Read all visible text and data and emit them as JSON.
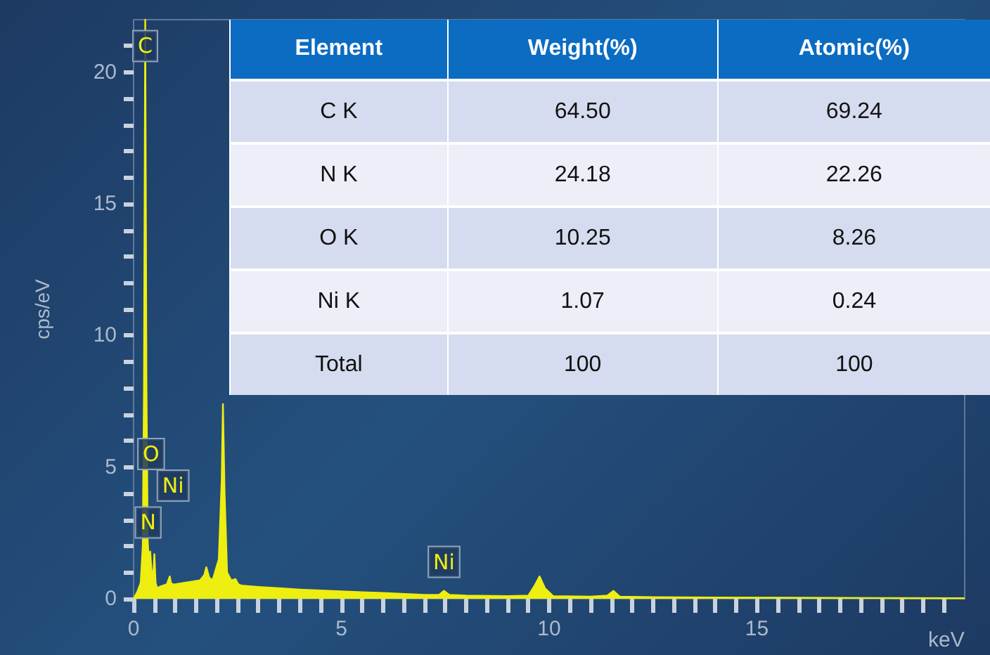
{
  "chart_data": [
    {
      "type": "area",
      "xlabel": "keV",
      "ylabel": "cps/eV",
      "color": "#eeee10",
      "xlim": [
        0,
        20
      ],
      "ylim": [
        0,
        22
      ],
      "xticks": [
        0,
        {
          "value": 0.5,
          "label": null
        },
        {
          "value": 1,
          "label": null
        },
        {
          "value": 1.5,
          "label": null
        },
        {
          "value": 2,
          "label": null
        },
        {
          "value": 2.5,
          "label": null
        },
        {
          "value": 3,
          "label": null
        },
        {
          "value": 3.5,
          "label": null
        },
        {
          "value": 4,
          "label": null
        },
        {
          "value": 4.5,
          "label": null
        },
        5,
        {
          "value": 5.5,
          "label": null
        },
        {
          "value": 6,
          "label": null
        },
        {
          "value": 6.5,
          "label": null
        },
        {
          "value": 7,
          "label": null
        },
        {
          "value": 7.5,
          "label": null
        },
        {
          "value": 8,
          "label": null
        },
        {
          "value": 8.5,
          "label": null
        },
        {
          "value": 9,
          "label": null
        },
        {
          "value": 9.5,
          "label": null
        },
        10,
        {
          "value": 10.5,
          "label": null
        },
        {
          "value": 11,
          "label": null
        },
        {
          "value": 11.5,
          "label": null
        },
        {
          "value": 12,
          "label": null
        },
        {
          "value": 12.5,
          "label": null
        },
        {
          "value": 13,
          "label": null
        },
        {
          "value": 13.5,
          "label": null
        },
        {
          "value": 14,
          "label": null
        },
        {
          "value": 14.5,
          "label": null
        },
        15,
        {
          "value": 15.5,
          "label": null
        },
        {
          "value": 16,
          "label": null
        },
        {
          "value": 16.5,
          "label": null
        },
        {
          "value": 17,
          "label": null
        },
        {
          "value": 17.5,
          "label": null
        },
        {
          "value": 18,
          "label": null
        },
        {
          "value": 18.5,
          "label": null
        },
        {
          "value": 19,
          "label": null
        },
        {
          "value": 19.5,
          "label": null
        }
      ],
      "yticks": [
        0,
        {
          "value": 1,
          "label": null
        },
        {
          "value": 2,
          "label": null
        },
        {
          "value": 3,
          "label": null
        },
        {
          "value": 4,
          "label": null
        },
        5,
        {
          "value": 6,
          "label": null
        },
        {
          "value": 7,
          "label": null
        },
        {
          "value": 8,
          "label": null
        },
        {
          "value": 9,
          "label": null
        },
        10,
        {
          "value": 11,
          "label": null
        },
        {
          "value": 12,
          "label": null
        },
        {
          "value": 13,
          "label": null
        },
        {
          "value": 14,
          "label": null
        },
        15,
        {
          "value": 16,
          "label": null
        },
        {
          "value": 17,
          "label": null
        },
        {
          "value": 18,
          "label": null
        },
        {
          "value": 19,
          "label": null
        },
        20,
        {
          "value": 21,
          "label": null
        }
      ],
      "x": [
        0,
        0.1,
        0.17,
        0.22,
        0.25,
        0.28,
        0.31,
        0.34,
        0.37,
        0.4,
        0.43,
        0.47,
        0.5,
        0.53,
        0.57,
        0.62,
        0.7,
        0.8,
        0.87,
        0.9,
        0.94,
        1.0,
        1.2,
        1.4,
        1.6,
        1.7,
        1.75,
        1.82,
        1.9,
        2.05,
        2.12,
        2.15,
        2.19,
        2.25,
        2.35,
        2.45,
        2.52,
        2.6,
        3.0,
        3.5,
        4.0,
        5.0,
        6.0,
        7.0,
        7.35,
        7.47,
        7.6,
        8.0,
        9.0,
        9.5,
        9.65,
        9.77,
        9.9,
        10.1,
        11.0,
        11.4,
        11.55,
        11.7,
        12.5,
        14.0,
        16.0,
        18.0,
        20.0
      ],
      "values": [
        0,
        0.3,
        0.6,
        2.0,
        8.0,
        22,
        8.0,
        2.2,
        1.4,
        1.8,
        1.1,
        0.8,
        1.7,
        0.6,
        0.4,
        0.45,
        0.5,
        0.55,
        0.85,
        0.6,
        0.55,
        0.55,
        0.6,
        0.65,
        0.7,
        0.9,
        1.2,
        0.8,
        0.7,
        1.5,
        4.5,
        7.4,
        4.0,
        1.0,
        0.7,
        0.75,
        0.55,
        0.5,
        0.45,
        0.4,
        0.35,
        0.28,
        0.22,
        0.15,
        0.15,
        0.3,
        0.15,
        0.12,
        0.1,
        0.12,
        0.5,
        0.85,
        0.4,
        0.1,
        0.08,
        0.12,
        0.3,
        0.08,
        0.06,
        0.05,
        0.04,
        0.03,
        0.02
      ],
      "annotations": [
        {
          "text": "C",
          "x": 0.28,
          "y": 21
        },
        {
          "text": "O",
          "x": 0.42,
          "y": 5.5
        },
        {
          "text": "Ni",
          "x": 0.95,
          "y": 4.3
        },
        {
          "text": "N",
          "x": 0.35,
          "y": 2.9
        },
        {
          "text": "Ni",
          "x": 7.47,
          "y": 1.4
        }
      ]
    },
    {
      "type": "other",
      "ylabel": "Element",
      "categories": [
        "Weight(%)",
        "Atomic(%)"
      ],
      "y_categories": [
        "C K",
        "N K",
        "O K",
        "Ni K",
        "Total"
      ],
      "cell_labels": [
        [
          "64.50",
          "69.24"
        ],
        [
          "24.18",
          "22.26"
        ],
        [
          "10.25",
          "8.26"
        ],
        [
          "1.07",
          "0.24"
        ],
        [
          "100",
          "100"
        ]
      ]
    }
  ]
}
